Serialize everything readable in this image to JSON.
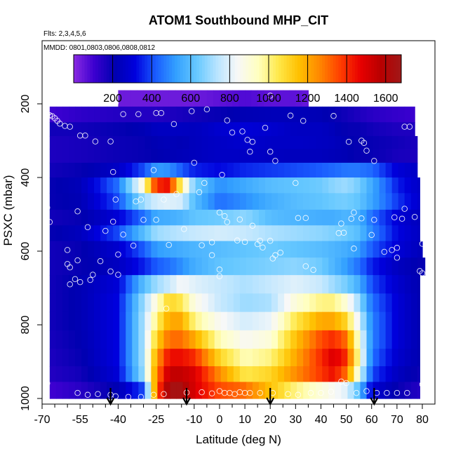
{
  "chart_data": {
    "type": "heatmap",
    "title": "ATOM1 Southbound MHP_CIT",
    "subtitle_flights": "Flts: 2,3,4,5,6",
    "subtitle_dates": "MMDD: 0801,0803,0806,0808,0812",
    "xlabel": "Latitude (deg N)",
    "ylabel": "PSXC (mbar)",
    "xlim": [
      -70,
      85
    ],
    "ylim": [
      1000,
      0
    ],
    "x_ticks": [
      -70,
      -55,
      -40,
      -25,
      -10,
      0,
      10,
      20,
      30,
      40,
      50,
      60,
      70,
      80
    ],
    "x_tick_labels": [
      "-70",
      "-55",
      "-40",
      "-25",
      "-10",
      "0",
      "10",
      "20",
      "30",
      "40",
      "50",
      "60",
      "70",
      "80"
    ],
    "x_minor_ticks": [
      -65,
      -60,
      -50,
      -45,
      -35,
      -30,
      -20,
      -15,
      -5,
      5,
      15,
      25,
      35,
      45,
      55,
      65,
      75,
      85
    ],
    "y_ticks": [
      200,
      400,
      600,
      800,
      1000
    ],
    "y_tick_labels": [
      "200",
      "400",
      "600",
      "800",
      "1000"
    ],
    "colorbar": {
      "range": [
        0,
        1680
      ],
      "ticks": [
        200,
        400,
        600,
        800,
        1000,
        1200,
        1400,
        1600
      ],
      "tick_labels": [
        "200",
        "400",
        "600",
        "800",
        "1000",
        "1200",
        "1400",
        "1600"
      ],
      "colors": [
        "#8a2be2",
        "#3c00d0",
        "#0000b0",
        "#0000dd",
        "#1a5cff",
        "#33a0ff",
        "#66c8ff",
        "#b8e4ff",
        "#f8f8f8",
        "#ffffc0",
        "#ffe84a",
        "#ffc000",
        "#ff8800",
        "#ff4000",
        "#e80000",
        "#b80000",
        "#a01818"
      ]
    },
    "arrows_at_latitude": [
      -43,
      -13,
      20,
      61
    ],
    "field": {
      "row_pressures": [
        185,
        230,
        270,
        305,
        340,
        380,
        420,
        465,
        510,
        550,
        595,
        640,
        690,
        740,
        790,
        840,
        890,
        935,
        975
      ],
      "row_lat_ranges": [
        [
          -40,
          35
        ],
        [
          -67,
          77
        ],
        [
          -67,
          77
        ],
        [
          -67,
          78
        ],
        [
          -67,
          78
        ],
        [
          -67,
          78
        ],
        [
          -67,
          79
        ],
        [
          -67,
          79
        ],
        [
          -67,
          79
        ],
        [
          -67,
          79
        ],
        [
          -67,
          80
        ],
        [
          -67,
          81
        ],
        [
          -67,
          79
        ],
        [
          -67,
          79
        ],
        [
          -67,
          79
        ],
        [
          -67,
          79
        ],
        [
          -67,
          79
        ],
        [
          -67,
          79
        ],
        [
          -67,
          79
        ]
      ],
      "lat_grid": [
        -67,
        -55,
        -40,
        -30,
        -25,
        -20,
        -15,
        -10,
        0,
        10,
        20,
        30,
        40,
        45,
        50,
        55,
        60,
        70,
        80
      ],
      "values": [
        [
          40,
          40,
          40,
          40,
          40,
          40,
          40,
          40,
          60,
          80,
          60,
          60,
          40,
          40,
          40,
          40,
          40,
          40,
          40
        ],
        [
          100,
          130,
          150,
          150,
          150,
          160,
          170,
          180,
          200,
          220,
          230,
          230,
          220,
          200,
          180,
          160,
          140,
          120,
          100
        ],
        [
          180,
          180,
          200,
          220,
          250,
          250,
          250,
          240,
          280,
          300,
          280,
          250,
          250,
          230,
          200,
          200,
          180,
          160,
          160
        ],
        [
          160,
          170,
          190,
          200,
          220,
          230,
          220,
          240,
          260,
          280,
          260,
          260,
          250,
          240,
          220,
          200,
          200,
          180,
          160
        ],
        [
          160,
          170,
          190,
          200,
          210,
          220,
          230,
          240,
          260,
          260,
          250,
          240,
          240,
          230,
          220,
          200,
          200,
          170,
          160
        ],
        [
          180,
          200,
          260,
          400,
          520,
          500,
          420,
          350,
          320,
          360,
          380,
          400,
          420,
          440,
          460,
          460,
          440,
          300,
          250
        ],
        [
          200,
          230,
          450,
          900,
          1400,
          1450,
          1000,
          650,
          500,
          550,
          600,
          620,
          640,
          680,
          700,
          650,
          550,
          350,
          250
        ],
        [
          200,
          220,
          400,
          700,
          780,
          800,
          780,
          600,
          450,
          500,
          560,
          600,
          620,
          640,
          650,
          620,
          540,
          380,
          260
        ],
        [
          180,
          200,
          300,
          450,
          550,
          560,
          580,
          620,
          640,
          680,
          600,
          580,
          560,
          560,
          580,
          560,
          450,
          300,
          230
        ],
        [
          200,
          240,
          400,
          600,
          700,
          720,
          740,
          760,
          780,
          760,
          720,
          700,
          680,
          660,
          640,
          600,
          480,
          320,
          240
        ],
        [
          180,
          200,
          280,
          420,
          520,
          540,
          560,
          580,
          600,
          620,
          640,
          620,
          600,
          580,
          560,
          520,
          420,
          300,
          230
        ],
        [
          180,
          200,
          250,
          350,
          420,
          450,
          500,
          560,
          620,
          640,
          660,
          680,
          640,
          580,
          520,
          450,
          350,
          250,
          200
        ],
        [
          180,
          220,
          300,
          600,
          700,
          760,
          840,
          800,
          760,
          720,
          760,
          800,
          760,
          700,
          650,
          560,
          400,
          280,
          200
        ],
        [
          180,
          220,
          320,
          700,
          900,
          1100,
          1050,
          880,
          760,
          700,
          720,
          900,
          1000,
          1000,
          900,
          700,
          450,
          300,
          200
        ],
        [
          180,
          220,
          320,
          720,
          1000,
          1200,
          1200,
          1000,
          850,
          780,
          820,
          1050,
          1200,
          1200,
          1100,
          800,
          480,
          300,
          200
        ],
        [
          170,
          210,
          320,
          720,
          1100,
          1300,
          1300,
          1200,
          950,
          850,
          900,
          1150,
          1350,
          1400,
          1300,
          900,
          480,
          300,
          200
        ],
        [
          160,
          200,
          320,
          720,
          1200,
          1450,
          1450,
          1400,
          1100,
          950,
          1000,
          1200,
          1400,
          1500,
          1400,
          950,
          450,
          280,
          200
        ],
        [
          150,
          180,
          300,
          700,
          1250,
          1550,
          1550,
          1500,
          1250,
          1050,
          1100,
          1250,
          1380,
          1450,
          1300,
          850,
          400,
          250,
          180
        ],
        [
          100,
          140,
          220,
          400,
          1300,
          1650,
          1650,
          1500,
          1350,
          1300,
          1150,
          1000,
          900,
          850,
          800,
          600,
          300,
          200,
          140
        ]
      ]
    },
    "sample_points": [
      [
        -68,
        228
      ],
      [
        -67,
        231
      ],
      [
        -66,
        234
      ],
      [
        -65,
        239
      ],
      [
        -64,
        246
      ],
      [
        -63,
        254
      ],
      [
        -61,
        260
      ],
      [
        -59,
        262
      ],
      [
        -55,
        286
      ],
      [
        -53,
        286
      ],
      [
        -49,
        302
      ],
      [
        -43,
        302
      ],
      [
        -41,
        198
      ],
      [
        -38,
        228
      ],
      [
        -32,
        228
      ],
      [
        -25,
        225
      ],
      [
        -23,
        225
      ],
      [
        -18,
        255
      ],
      [
        -11,
        220
      ],
      [
        -5,
        215
      ],
      [
        3,
        245
      ],
      [
        5,
        278
      ],
      [
        9,
        275
      ],
      [
        11,
        298
      ],
      [
        13,
        303
      ],
      [
        18,
        265
      ],
      [
        20,
        178
      ],
      [
        28,
        232
      ],
      [
        33,
        246
      ],
      [
        45,
        233
      ],
      [
        51,
        303
      ],
      [
        56,
        300
      ],
      [
        57,
        306
      ],
      [
        58,
        327
      ],
      [
        61,
        355
      ],
      [
        73,
        262
      ],
      [
        75,
        262
      ],
      [
        -42,
        385
      ],
      [
        -26,
        380
      ],
      [
        -10,
        360
      ],
      [
        1,
        393
      ],
      [
        12,
        330
      ],
      [
        20,
        330
      ],
      [
        22,
        355
      ],
      [
        30,
        415
      ],
      [
        -41,
        460
      ],
      [
        -33,
        465
      ],
      [
        -31,
        460
      ],
      [
        -22,
        460
      ],
      [
        -17,
        445
      ],
      [
        -8,
        440
      ],
      [
        -6,
        415
      ],
      [
        -56,
        492
      ],
      [
        -68,
        482
      ],
      [
        -67,
        521
      ],
      [
        -42,
        520
      ],
      [
        -38,
        555
      ],
      [
        -45,
        545
      ],
      [
        -34,
        585
      ],
      [
        -52,
        535
      ],
      [
        -60,
        597
      ],
      [
        -47,
        627
      ],
      [
        -40,
        609
      ],
      [
        -30,
        515
      ],
      [
        -25,
        515
      ],
      [
        -20,
        583
      ],
      [
        -14,
        540
      ],
      [
        0,
        495
      ],
      [
        2,
        505
      ],
      [
        3,
        521
      ],
      [
        8,
        514
      ],
      [
        13,
        531
      ],
      [
        17,
        590
      ],
      [
        21,
        620
      ],
      [
        31,
        510
      ],
      [
        34,
        510
      ],
      [
        48,
        525
      ],
      [
        52,
        512
      ],
      [
        56,
        511
      ],
      [
        61,
        515
      ],
      [
        69,
        508
      ],
      [
        72,
        512
      ],
      [
        82,
        509
      ],
      [
        84,
        512
      ],
      [
        53,
        495
      ],
      [
        73,
        485
      ],
      [
        77,
        507
      ],
      [
        16,
        572
      ],
      [
        20,
        572
      ],
      [
        7,
        571
      ],
      [
        10,
        575
      ],
      [
        15,
        581
      ],
      [
        -7,
        584
      ],
      [
        -3,
        576
      ],
      [
        53,
        593
      ],
      [
        68,
        597
      ],
      [
        70,
        591
      ],
      [
        80,
        580
      ],
      [
        85,
        582
      ],
      [
        70,
        618
      ],
      [
        65,
        602
      ],
      [
        -56,
        625
      ],
      [
        -60,
        635
      ],
      [
        -59,
        644
      ],
      [
        -3,
        611
      ],
      [
        0,
        650
      ],
      [
        0,
        668
      ],
      [
        34,
        641
      ],
      [
        79,
        654
      ],
      [
        80,
        660
      ],
      [
        83,
        656
      ],
      [
        -21,
        756
      ],
      [
        22,
        611
      ],
      [
        24,
        604
      ],
      [
        37,
        651
      ],
      [
        -43,
        655
      ],
      [
        -40,
        664
      ],
      [
        -57,
        676
      ],
      [
        -55,
        684
      ],
      [
        -51,
        678
      ],
      [
        -50,
        664
      ],
      [
        -59,
        690
      ],
      [
        47,
        551
      ],
      [
        49,
        550
      ],
      [
        60,
        556
      ],
      [
        -68,
        959
      ],
      [
        -56,
        985
      ],
      [
        -52,
        990
      ],
      [
        -48,
        988
      ],
      [
        -43,
        990
      ],
      [
        -41,
        994
      ],
      [
        -36,
        996
      ],
      [
        -31,
        996
      ],
      [
        -26,
        990
      ],
      [
        -22,
        988
      ],
      [
        -13,
        984
      ],
      [
        -7,
        983
      ],
      [
        -3,
        986
      ],
      [
        0,
        980
      ],
      [
        2,
        985
      ],
      [
        4,
        985
      ],
      [
        6,
        988
      ],
      [
        8,
        983
      ],
      [
        10,
        985
      ],
      [
        12,
        985
      ],
      [
        16,
        985
      ],
      [
        21,
        985
      ],
      [
        27,
        988
      ],
      [
        31,
        990
      ],
      [
        36,
        985
      ],
      [
        40,
        985
      ],
      [
        44,
        982
      ],
      [
        48,
        954
      ],
      [
        50,
        958
      ],
      [
        54,
        985
      ],
      [
        58,
        980
      ],
      [
        62,
        985
      ],
      [
        66,
        985
      ],
      [
        70,
        985
      ],
      [
        74,
        985
      ],
      [
        80,
        962
      ]
    ]
  }
}
